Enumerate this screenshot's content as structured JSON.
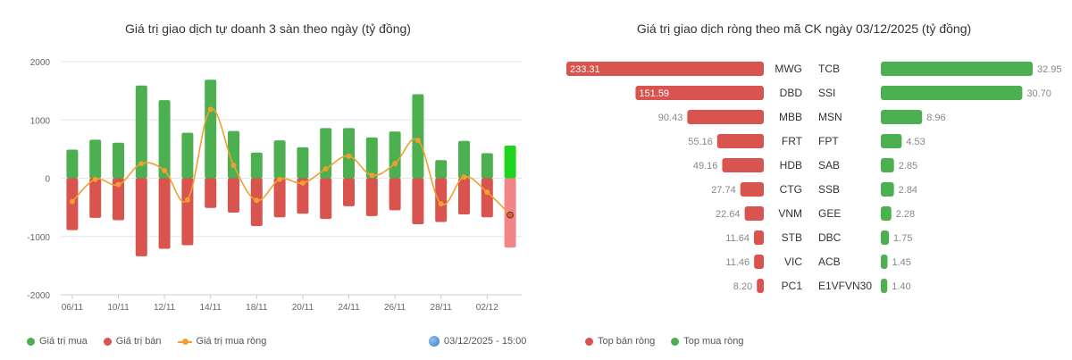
{
  "left_chart": {
    "title": "Giá trị giao dịch tự doanh 3 sàn theo ngày (tỷ đồng)",
    "legend": {
      "buy": "Giá trị mua",
      "sell": "Giá trị bán",
      "net": "Giá trị mua ròng"
    },
    "timestamp": "03/12/2025 - 15:00"
  },
  "right_chart": {
    "title": "Giá trị giao dịch ròng theo mã CK ngày 03/12/2025 (tỷ đồng)",
    "legend": {
      "sell": "Top bán ròng",
      "buy": "Top mua ròng"
    }
  },
  "colors": {
    "buy": "#4caf50",
    "sell": "#d9534f",
    "net": "#f0a030",
    "buy_highlight": "#1ed51e",
    "sell_highlight": "#f28585"
  },
  "chart_data": [
    {
      "type": "bar",
      "title": "Giá trị giao dịch tự doanh 3 sàn theo ngày (tỷ đồng)",
      "ylim": [
        -2000,
        2000
      ],
      "yticks": [
        2000,
        1000,
        0,
        -1000,
        -2000
      ],
      "x_tick_labels": [
        "06/11",
        "10/11",
        "12/11",
        "14/11",
        "18/11",
        "20/11",
        "24/11",
        "26/11",
        "28/11",
        "02/12"
      ],
      "categories": [
        "06/11",
        "07/11",
        "10/11",
        "11/11",
        "12/11",
        "13/11",
        "14/11",
        "17/11",
        "18/11",
        "19/11",
        "20/11",
        "21/11",
        "24/11",
        "25/11",
        "26/11",
        "27/11",
        "28/11",
        "01/12",
        "02/12",
        "03/12"
      ],
      "series": [
        {
          "name": "Giá trị mua",
          "values": [
            490,
            660,
            610,
            1590,
            1340,
            780,
            1690,
            810,
            440,
            650,
            530,
            860,
            860,
            700,
            800,
            1440,
            310,
            640,
            430,
            560
          ]
        },
        {
          "name": "Giá trị bán",
          "values": [
            -890,
            -680,
            -720,
            -1340,
            -1210,
            -1150,
            -510,
            -590,
            -820,
            -670,
            -610,
            -700,
            -480,
            -650,
            -550,
            -790,
            -750,
            -620,
            -670,
            -1190
          ]
        },
        {
          "name": "Giá trị mua ròng",
          "values": [
            -400,
            -20,
            -110,
            250,
            130,
            -370,
            1180,
            220,
            -380,
            -20,
            -80,
            160,
            380,
            50,
            250,
            650,
            -440,
            20,
            -240,
            -630
          ]
        }
      ],
      "highlight_last": true,
      "legend_position": "bottom-left"
    },
    {
      "type": "bar",
      "orientation": "horizontal",
      "title": "Giá trị giao dịch ròng theo mã CK ngày 03/12/2025 (tỷ đồng)",
      "series": [
        {
          "name": "Top bán ròng",
          "categories": [
            "MWG",
            "DBD",
            "MBB",
            "FRT",
            "HDB",
            "CTG",
            "VNM",
            "STB",
            "VIC",
            "PC1"
          ],
          "values": [
            233.31,
            151.59,
            90.43,
            55.16,
            49.16,
            27.74,
            22.64,
            11.64,
            11.46,
            8.2
          ],
          "labels": [
            "233.31",
            "151.59",
            "90.43",
            "55.16",
            "49.16",
            "27.74",
            "22.64",
            "11.64",
            "11.46",
            "8.20"
          ]
        },
        {
          "name": "Top mua ròng",
          "categories": [
            "TCB",
            "SSI",
            "MSN",
            "FPT",
            "SAB",
            "SSB",
            "GEE",
            "DBC",
            "ACB",
            "E1VFVN30"
          ],
          "values": [
            32.95,
            30.7,
            8.96,
            4.53,
            2.85,
            2.84,
            2.28,
            1.75,
            1.45,
            1.4
          ],
          "labels": [
            "32.95",
            "30.70",
            "8.96",
            "4.53",
            "2.85",
            "2.84",
            "2.28",
            "1.75",
            "1.45",
            "1.40"
          ]
        }
      ],
      "legend_position": "bottom-center"
    }
  ]
}
